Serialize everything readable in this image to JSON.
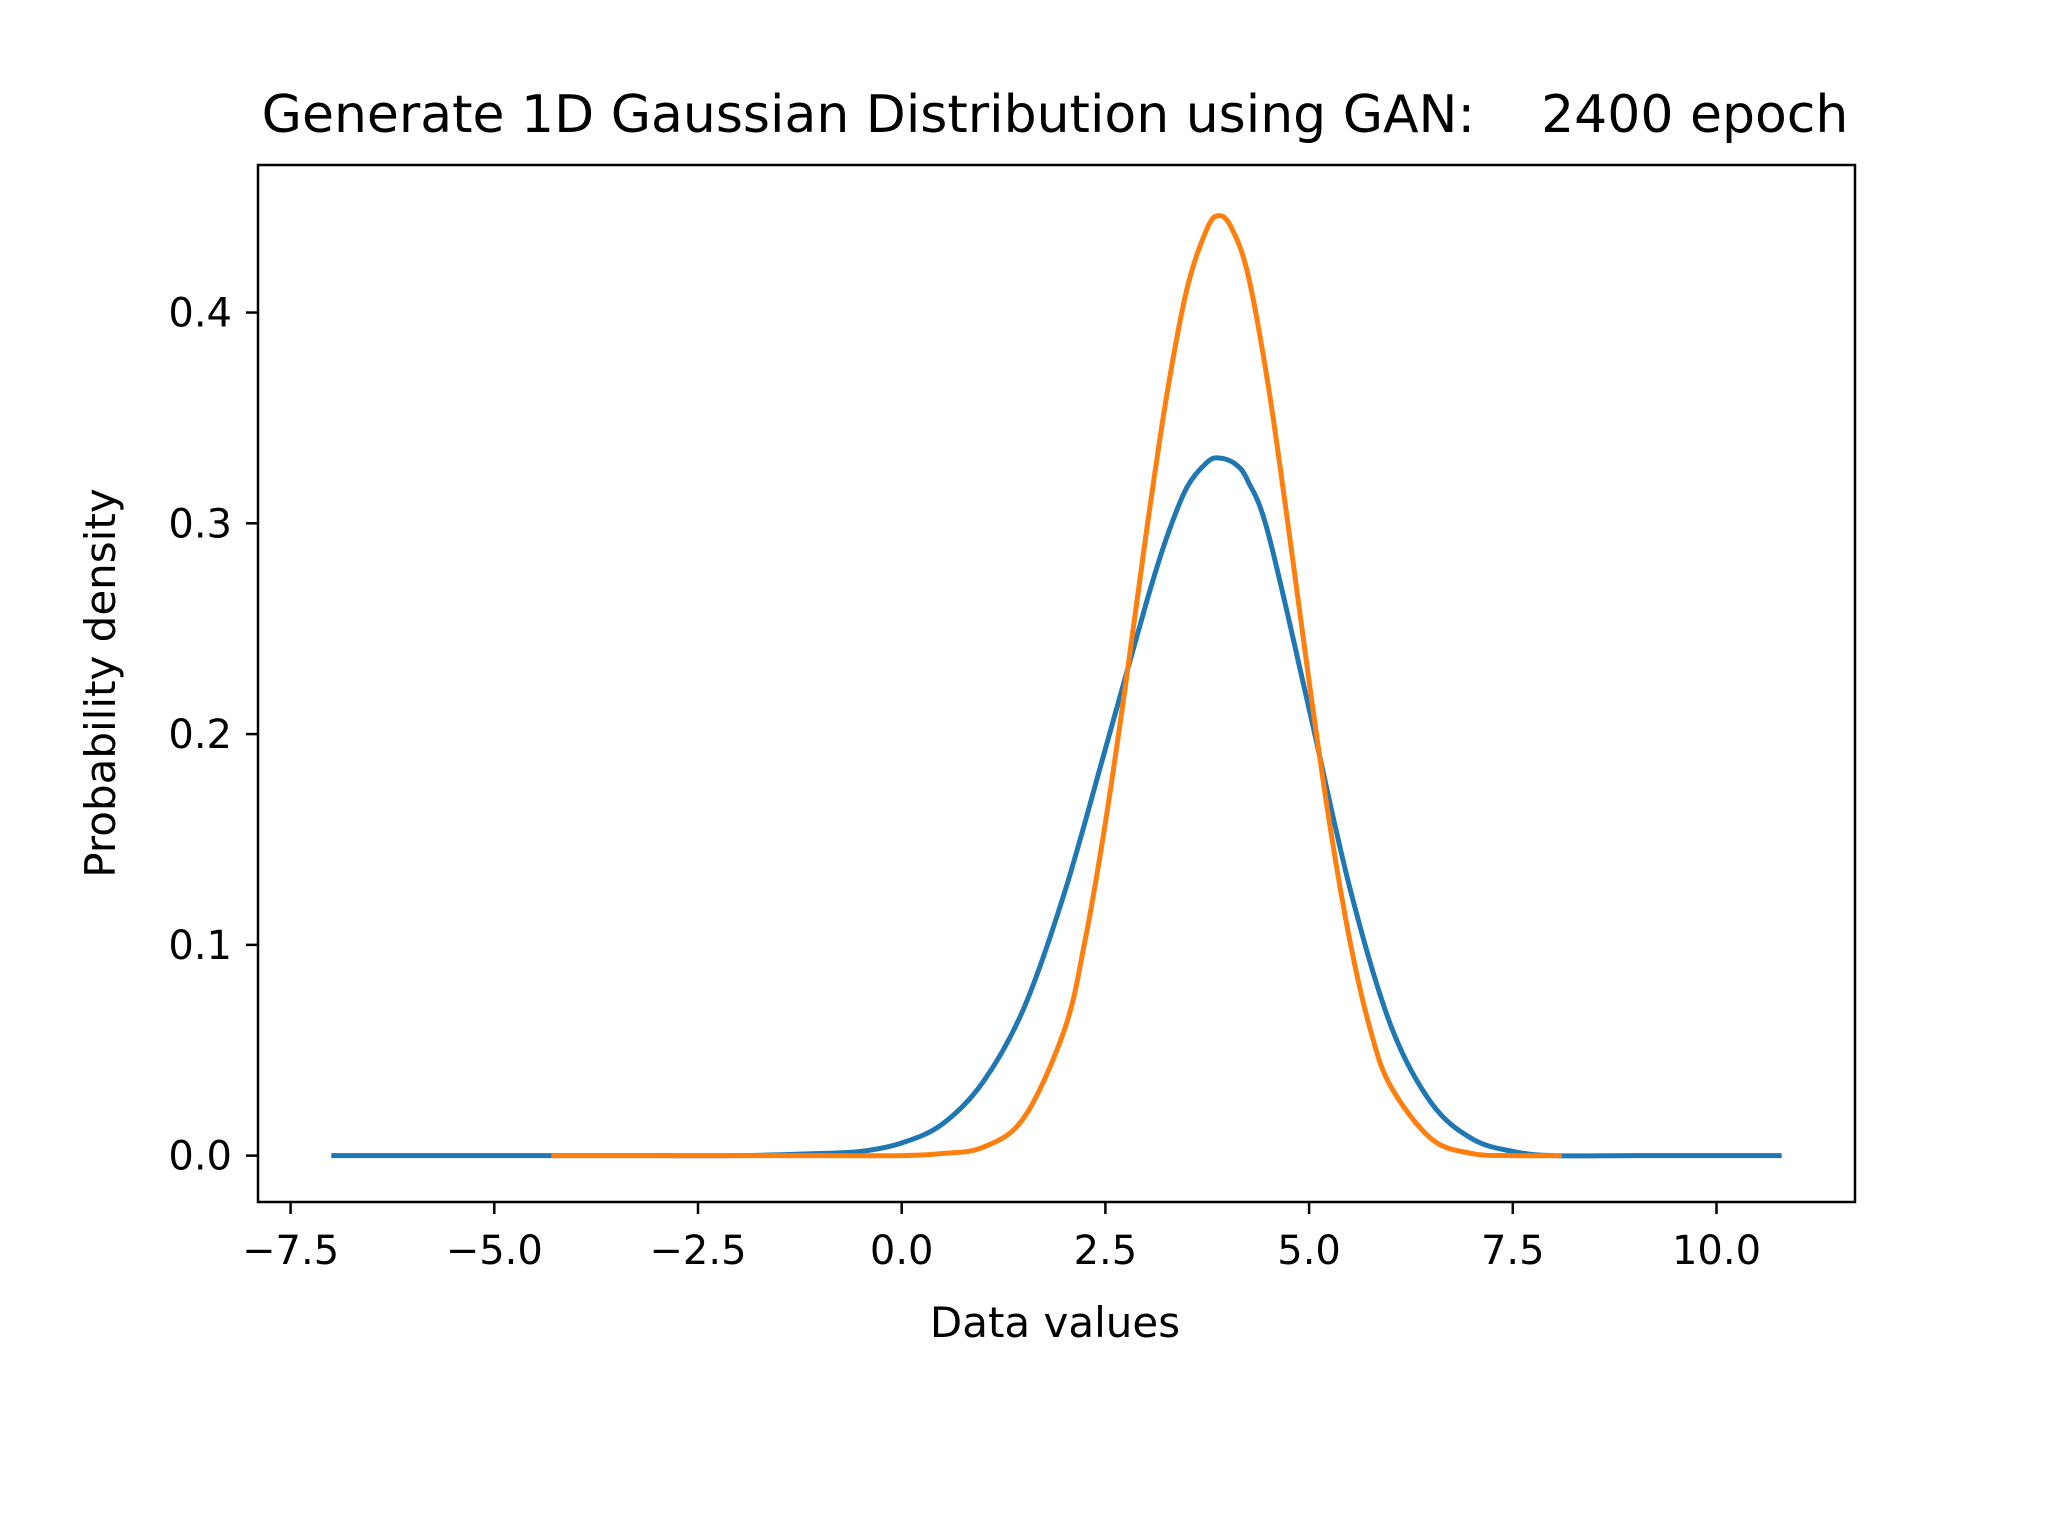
{
  "chart_data": {
    "type": "line",
    "title": "Generate 1D Gaussian Distribution using GAN:    2400 epoch",
    "xlabel": "Data values",
    "ylabel": "Probability density",
    "xlim": [
      -7.9,
      11.7
    ],
    "ylim": [
      -0.022,
      0.47
    ],
    "grid": false,
    "x_ticks": [
      -7.5,
      -5.0,
      -2.5,
      0.0,
      2.5,
      5.0,
      7.5,
      10.0
    ],
    "x_tick_labels": [
      "−7.5",
      "−5.0",
      "−2.5",
      "0.0",
      "2.5",
      "5.0",
      "7.5",
      "10.0"
    ],
    "y_ticks": [
      0.0,
      0.1,
      0.2,
      0.3,
      0.4
    ],
    "y_tick_labels": [
      "0.0",
      "0.1",
      "0.2",
      "0.3",
      "0.4"
    ],
    "series": [
      {
        "color": "#1f77b4",
        "x": [
          -7.0,
          -6.0,
          -5.0,
          -4.0,
          -3.0,
          -2.0,
          -1.0,
          -0.5,
          0.0,
          0.5,
          1.0,
          1.5,
          2.0,
          2.5,
          3.0,
          3.25,
          3.5,
          3.75,
          3.9,
          4.1,
          4.25,
          4.5,
          5.0,
          5.5,
          6.0,
          6.5,
          7.0,
          7.5,
          8.0,
          9.0,
          10.0,
          10.8
        ],
        "y": [
          0.0,
          0.0,
          0.0,
          0.0,
          0.0,
          0.0,
          0.001,
          0.002,
          0.006,
          0.015,
          0.035,
          0.07,
          0.125,
          0.193,
          0.262,
          0.293,
          0.317,
          0.329,
          0.331,
          0.328,
          0.32,
          0.295,
          0.212,
          0.127,
          0.062,
          0.025,
          0.008,
          0.002,
          0.0,
          0.0,
          0.0,
          0.0
        ]
      },
      {
        "color": "#ff7f0e",
        "x": [
          -4.3,
          -3.0,
          -2.0,
          -1.0,
          0.0,
          0.5,
          1.0,
          1.5,
          2.0,
          2.25,
          2.5,
          2.75,
          3.0,
          3.25,
          3.5,
          3.75,
          3.9,
          4.05,
          4.25,
          4.5,
          4.75,
          5.0,
          5.25,
          5.5,
          5.75,
          6.0,
          6.5,
          7.0,
          7.5,
          8.1
        ],
        "y": [
          0.0,
          0.0,
          0.0,
          0.0,
          0.0,
          0.001,
          0.004,
          0.018,
          0.06,
          0.102,
          0.158,
          0.224,
          0.295,
          0.36,
          0.411,
          0.44,
          0.446,
          0.44,
          0.418,
          0.365,
          0.297,
          0.225,
          0.158,
          0.102,
          0.06,
          0.033,
          0.008,
          0.001,
          0.0,
          0.0
        ]
      }
    ]
  }
}
